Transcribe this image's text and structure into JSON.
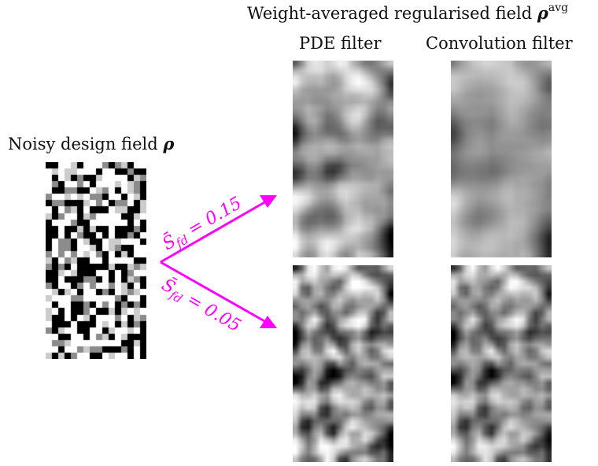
{
  "header": {
    "title_text": "Weight-averaged regularised field ",
    "title_symbol": "ρ",
    "title_superscript": "avg",
    "col_pde": "PDE filter",
    "col_conv": "Convolution filter"
  },
  "noisy": {
    "label_text": "Noisy design field ",
    "label_symbol": "ρ"
  },
  "arrows": {
    "upper_label": "S̄",
    "upper_sub": "fd",
    "upper_value": " = 0.15",
    "lower_label": "S̄",
    "lower_sub": "fd",
    "lower_value": " = 0.05"
  },
  "colors": {
    "arrow": "#ff00ff"
  }
}
